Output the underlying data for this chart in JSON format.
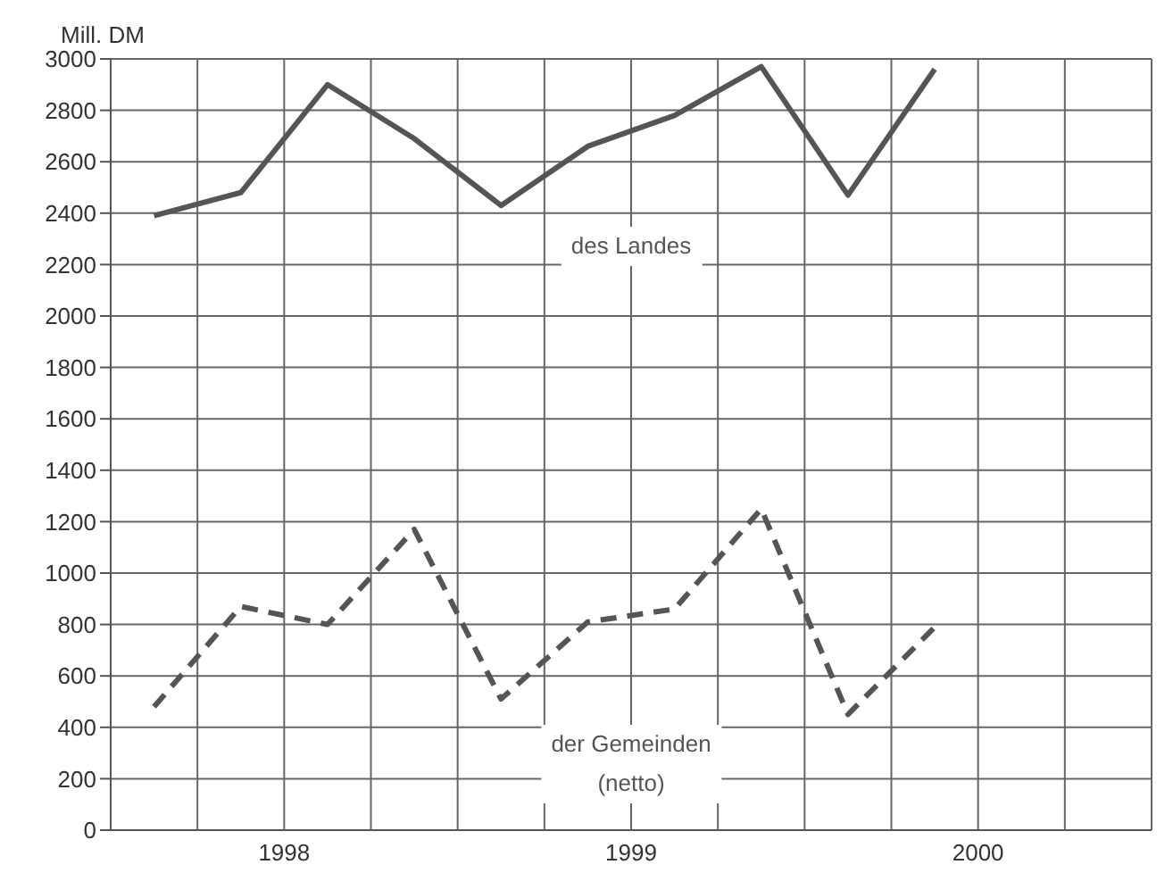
{
  "chart_data": {
    "type": "line",
    "ylabel": "Mill. DM",
    "x": [
      1998.125,
      1998.375,
      1998.625,
      1998.875,
      1999.125,
      1999.375,
      1999.625,
      1999.875,
      2000.125,
      2000.375
    ],
    "series": [
      {
        "name": "des Landes",
        "color": "#555555",
        "line_style": "solid",
        "values": [
          2390,
          2480,
          2900,
          2690,
          2430,
          2660,
          2780,
          2970,
          2470,
          2960
        ]
      },
      {
        "name": "der Gemeinden\n(netto)",
        "color": "#555555",
        "line_style": "dashed",
        "values": [
          480,
          870,
          800,
          1170,
          510,
          810,
          860,
          1250,
          450,
          790
        ]
      }
    ],
    "xlim": [
      1998,
      2001
    ],
    "xticks": [
      {
        "value": 1998,
        "label": null
      },
      {
        "value": 1998.25,
        "label": null
      },
      {
        "value": 1998.5,
        "label": "1998"
      },
      {
        "value": 1998.75,
        "label": null
      },
      {
        "value": 1999,
        "label": null
      },
      {
        "value": 1999.25,
        "label": null
      },
      {
        "value": 1999.5,
        "label": "1999"
      },
      {
        "value": 1999.75,
        "label": null
      },
      {
        "value": 2000,
        "label": null
      },
      {
        "value": 2000.25,
        "label": null
      },
      {
        "value": 2000.5,
        "label": "2000"
      },
      {
        "value": 2000.75,
        "label": null
      },
      {
        "value": 2001,
        "label": null
      }
    ],
    "ylim": [
      0,
      3000
    ],
    "yticks": [
      0,
      200,
      400,
      600,
      800,
      1000,
      1200,
      1400,
      1600,
      1800,
      2000,
      2200,
      2400,
      2600,
      2800,
      3000
    ],
    "grid": true,
    "marker": "none"
  }
}
